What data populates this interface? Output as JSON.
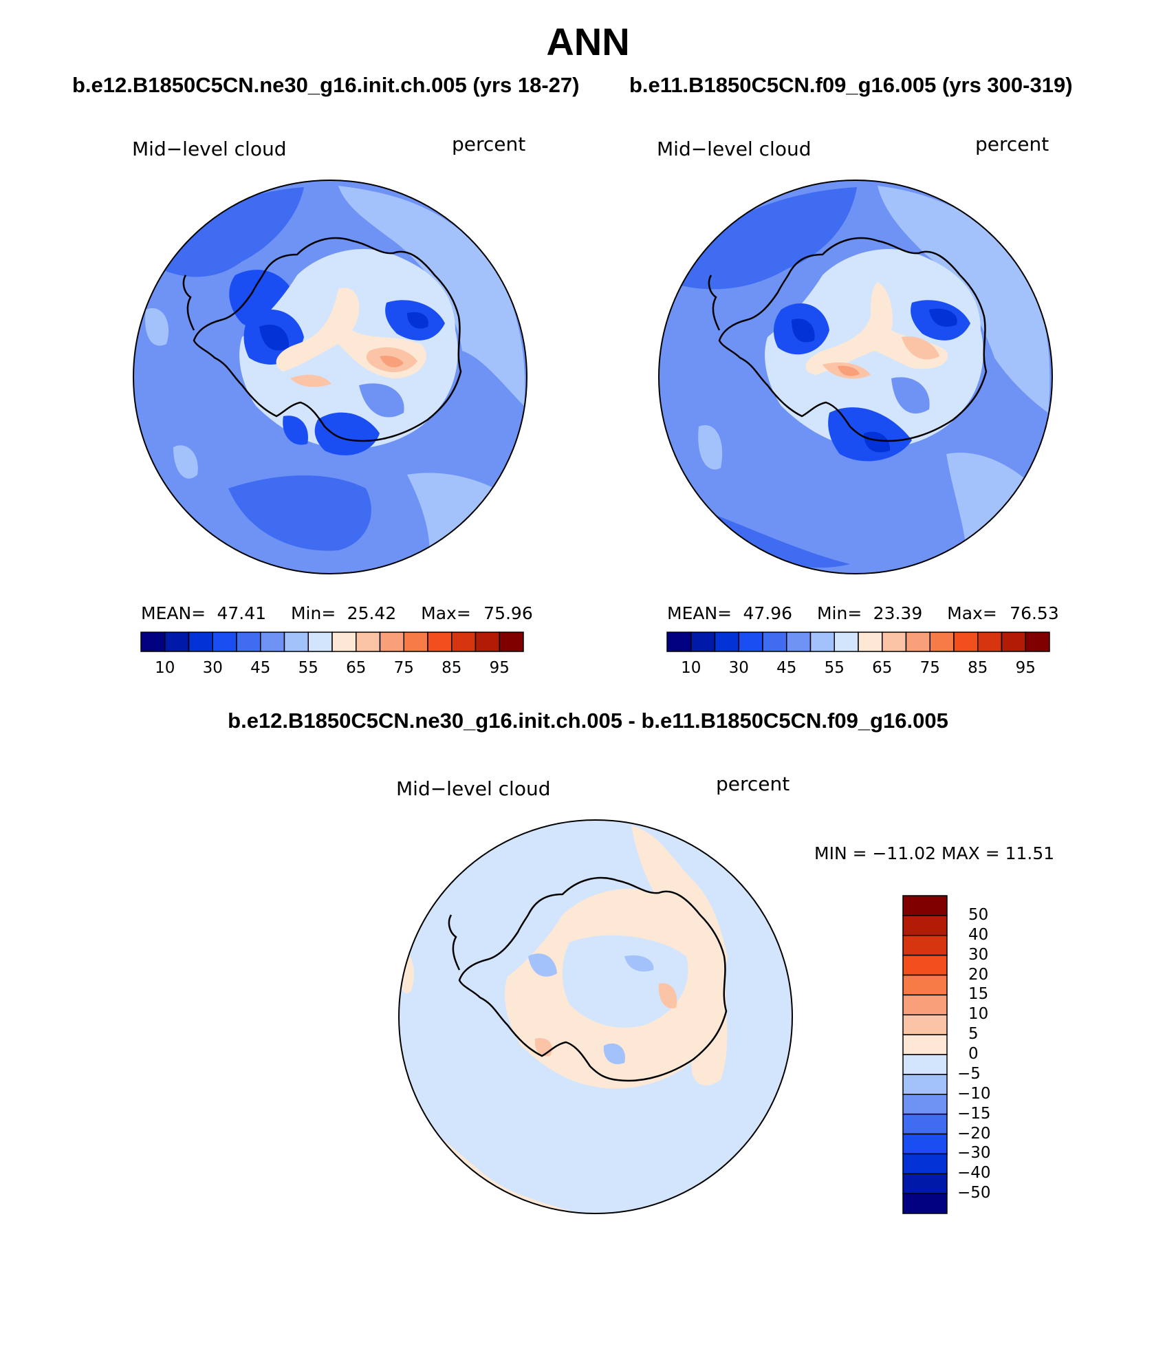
{
  "title": "ANN",
  "panels": [
    {
      "case_title": "b.e12.B1850C5CN.ne30_g16.init.ch.005 (yrs 18-27)",
      "variable": "Mid−level cloud",
      "units": "percent",
      "stats": {
        "mean_label": "MEAN=",
        "mean": "47.41",
        "min_label": "Min=",
        "min": "25.42",
        "max_label": "Max=",
        "max": "75.96"
      }
    },
    {
      "case_title": "b.e11.B1850C5CN.f09_g16.005 (yrs 300-319)",
      "variable": "Mid−level cloud",
      "units": "percent",
      "stats": {
        "mean_label": "MEAN=",
        "mean": "47.96",
        "min_label": "Min=",
        "min": "23.39",
        "max_label": "Max=",
        "max": "76.53"
      }
    }
  ],
  "colorbar": {
    "colors": [
      "#000080",
      "#0019a8",
      "#0333d6",
      "#1a4ef2",
      "#3f6cf0",
      "#6e93f5",
      "#a3c2fb",
      "#d3e5fc",
      "#fde8d6",
      "#fbc4a6",
      "#f8a07a",
      "#f77b47",
      "#f24f1d",
      "#d73410",
      "#b21c06",
      "#800000"
    ],
    "tick_labels": [
      "10",
      "30",
      "45",
      "55",
      "65",
      "75",
      "85",
      "95"
    ]
  },
  "difference": {
    "title": "b.e12.B1850C5CN.ne30_g16.init.ch.005 - b.e11.B1850C5CN.f09_g16.005",
    "variable": "Mid−level cloud",
    "units": "percent",
    "minmax": "MIN = −11.02 MAX =  11.51",
    "colorbar": {
      "colors": [
        "#800000",
        "#b21c06",
        "#d73410",
        "#f24f1d",
        "#f77b47",
        "#f8a07a",
        "#fbc4a6",
        "#fde8d6",
        "#d3e5fc",
        "#a3c2fb",
        "#6e93f5",
        "#3f6cf0",
        "#1a4ef2",
        "#0333d6",
        "#0019a8",
        "#000080"
      ],
      "tick_labels": [
        "50",
        "40",
        "30",
        "20",
        "15",
        "10",
        "5",
        "0",
        "−5",
        "−10",
        "−15",
        "−20",
        "−30",
        "−40",
        "−50"
      ]
    }
  },
  "map_colors": {
    "ocean_a": "#6e93f5",
    "ocean_b": "#3f6cf0",
    "light_a": "#a3c2fb",
    "dark": "#1a4ef2",
    "darker": "#0333d6",
    "pale": "#d3e5fc",
    "warm1": "#fde8d6",
    "warm2": "#fbc4a6",
    "warm3": "#f8a07a",
    "diff_bg": "#d3e5fc",
    "diff_warm": "#fde8d6",
    "diff_blue": "#a3c2fb",
    "diff_warm2": "#fbc4a6"
  }
}
